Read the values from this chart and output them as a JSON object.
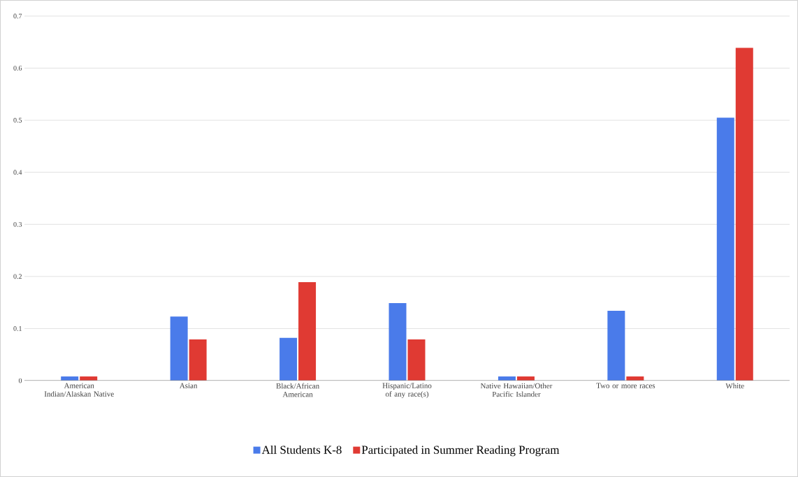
{
  "chart_data": {
    "type": "bar",
    "categories": [
      "American Indian/Alaskan Native",
      "Asian",
      "Black/African American",
      "Hispanic/Latino of any race(s)",
      "Native Hawaiian/Other Pacific Islander",
      "Two or more races",
      "White"
    ],
    "series": [
      {
        "name": "All Students K-8",
        "color": "#4a7bea",
        "values": [
          0.008,
          0.123,
          0.082,
          0.149,
          0.008,
          0.134,
          0.505
        ]
      },
      {
        "name": "Participated in Summer Reading Program",
        "color": "#e03a33",
        "values": [
          0.008,
          0.079,
          0.189,
          0.079,
          0.008,
          0.008,
          0.639
        ]
      }
    ],
    "ylim": [
      0,
      0.7
    ],
    "yticks": [
      0,
      0.1,
      0.2,
      0.3,
      0.4,
      0.5,
      0.6,
      0.7
    ],
    "grid": "y",
    "legend": "bottom"
  }
}
